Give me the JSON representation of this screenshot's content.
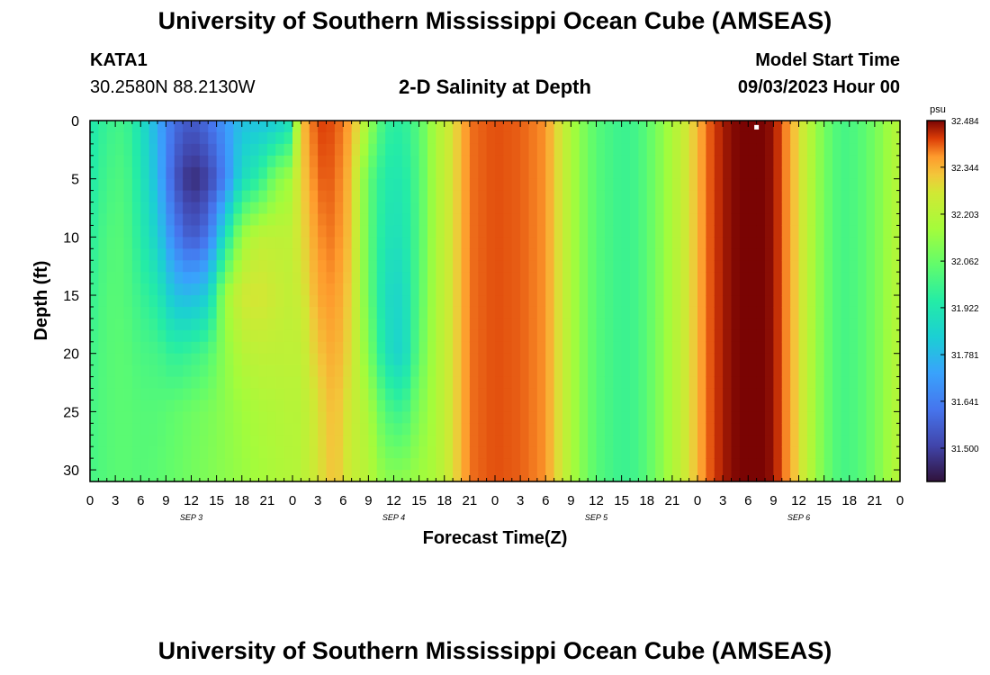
{
  "header": {
    "title": "University of Southern Mississippi Ocean Cube (AMSEAS)",
    "station": "KATA1",
    "coordinates": "30.2580N  88.2130W",
    "plot_title": "2-D Salinity at Depth",
    "model_start_label": "Model Start Time",
    "model_start_value": "09/03/2023 Hour 00"
  },
  "footer": {
    "title": "University of Southern Mississippi Ocean Cube (AMSEAS)"
  },
  "chart_data": {
    "type": "heatmap",
    "title": "2-D Salinity at Depth",
    "xlabel": "Forecast Time(Z)",
    "ylabel": "Depth (ft)",
    "x_tick_labels": [
      "0",
      "3",
      "6",
      "9",
      "12",
      "15",
      "18",
      "21",
      "0",
      "3",
      "6",
      "9",
      "12",
      "15",
      "18",
      "21",
      "0",
      "3",
      "6",
      "9",
      "12",
      "15",
      "18",
      "21",
      "0",
      "3",
      "6",
      "9",
      "12",
      "15",
      "18",
      "21",
      "0"
    ],
    "x_range_hours": [
      0,
      96
    ],
    "date_labels": [
      {
        "label": "SEP 3",
        "hour": 12
      },
      {
        "label": "SEP 4",
        "hour": 36
      },
      {
        "label": "SEP 5",
        "hour": 60
      },
      {
        "label": "SEP 6",
        "hour": 84
      }
    ],
    "y_ticks": [
      0,
      5,
      10,
      15,
      20,
      25,
      30
    ],
    "y_tick_labels": [
      "0",
      "5",
      "10",
      "15",
      "20",
      "25",
      "30"
    ],
    "ylim": [
      0,
      31
    ],
    "y_inverted": true,
    "colorbar": {
      "unit": "psu",
      "min": 31.4,
      "max": 32.484,
      "tick_labels": [
        "32.484",
        "32.344",
        "32.203",
        "32.062",
        "31.922",
        "31.781",
        "31.641",
        "31.500"
      ],
      "tick_values": [
        32.484,
        32.344,
        32.203,
        32.062,
        31.922,
        31.781,
        31.641,
        31.5
      ]
    },
    "marker": {
      "hour": 79,
      "depth": 0.3,
      "color": "#ffffff"
    },
    "columns": [
      {
        "hour": 0,
        "depth": [
          0,
          5,
          10,
          15,
          20,
          25,
          31
        ],
        "salinity": [
          31.92,
          31.93,
          31.95,
          31.97,
          31.99,
          32.0,
          32.0
        ]
      },
      {
        "hour": 2,
        "depth": [
          0,
          5,
          10,
          15,
          20,
          25,
          31
        ],
        "salinity": [
          31.98,
          32.0,
          32.02,
          32.03,
          32.03,
          32.03,
          32.03
        ]
      },
      {
        "hour": 4,
        "depth": [
          0,
          5,
          10,
          15,
          20,
          25,
          31
        ],
        "salinity": [
          32.0,
          32.02,
          32.03,
          32.03,
          32.04,
          32.04,
          32.04
        ]
      },
      {
        "hour": 6,
        "depth": [
          0,
          5,
          10,
          15,
          20,
          25,
          31
        ],
        "salinity": [
          31.9,
          31.92,
          31.94,
          31.98,
          32.01,
          32.03,
          32.03
        ]
      },
      {
        "hour": 8,
        "depth": [
          0,
          5,
          10,
          15,
          20,
          25,
          31
        ],
        "salinity": [
          31.75,
          31.78,
          31.84,
          31.93,
          32.0,
          32.03,
          32.04
        ]
      },
      {
        "hour": 10,
        "depth": [
          0,
          5,
          10,
          15,
          20,
          25,
          31
        ],
        "salinity": [
          31.6,
          31.55,
          31.65,
          31.8,
          31.96,
          32.05,
          32.06
        ]
      },
      {
        "hour": 12,
        "depth": [
          0,
          5,
          10,
          15,
          20,
          25,
          31
        ],
        "salinity": [
          31.55,
          31.45,
          31.55,
          31.78,
          31.98,
          32.07,
          32.08
        ]
      },
      {
        "hour": 14,
        "depth": [
          0,
          5,
          10,
          15,
          20,
          25,
          31
        ],
        "salinity": [
          31.6,
          31.5,
          31.62,
          31.84,
          32.02,
          32.09,
          32.1
        ]
      },
      {
        "hour": 16,
        "depth": [
          0,
          5,
          10,
          15,
          20,
          25,
          31
        ],
        "salinity": [
          31.7,
          31.65,
          31.9,
          32.15,
          32.12,
          32.12,
          32.12
        ]
      },
      {
        "hour": 18,
        "depth": [
          0,
          5,
          10,
          15,
          20,
          25,
          31
        ],
        "salinity": [
          31.8,
          31.88,
          32.15,
          32.26,
          32.2,
          32.15,
          32.14
        ]
      },
      {
        "hour": 20,
        "depth": [
          0,
          5,
          10,
          15,
          20,
          25,
          31
        ],
        "salinity": [
          31.8,
          31.95,
          32.22,
          32.28,
          32.22,
          32.18,
          32.16
        ]
      },
      {
        "hour": 22,
        "depth": [
          0,
          5,
          10,
          15,
          20,
          25,
          31
        ],
        "salinity": [
          31.82,
          32.1,
          32.22,
          32.25,
          32.22,
          32.19,
          32.18
        ]
      },
      {
        "hour": 23.5,
        "depth": [
          0,
          5,
          10,
          15,
          20,
          25,
          31
        ],
        "salinity": [
          31.88,
          32.15,
          32.22,
          32.23,
          32.22,
          32.2,
          32.19
        ]
      },
      {
        "hour": 25,
        "depth": [
          0,
          5,
          10,
          15,
          20,
          25,
          31
        ],
        "salinity": [
          32.32,
          32.3,
          32.28,
          32.25,
          32.22,
          32.2,
          32.2
        ]
      },
      {
        "hour": 27,
        "depth": [
          0,
          5,
          10,
          15,
          20,
          25,
          31
        ],
        "salinity": [
          32.43,
          32.41,
          32.38,
          32.36,
          32.32,
          32.28,
          32.27
        ]
      },
      {
        "hour": 29,
        "depth": [
          0,
          5,
          10,
          15,
          20,
          25,
          31
        ],
        "salinity": [
          32.42,
          32.41,
          32.4,
          32.38,
          32.36,
          32.34,
          32.33
        ]
      },
      {
        "hour": 31,
        "depth": [
          0,
          5,
          10,
          15,
          20,
          25,
          31
        ],
        "salinity": [
          32.36,
          32.33,
          32.32,
          32.3,
          32.28,
          32.25,
          32.24
        ]
      },
      {
        "hour": 33,
        "depth": [
          0,
          5,
          10,
          15,
          20,
          25,
          31
        ],
        "salinity": [
          32.15,
          32.05,
          32.05,
          32.06,
          32.1,
          32.18,
          32.2
        ]
      },
      {
        "hour": 35,
        "depth": [
          0,
          5,
          10,
          15,
          20,
          25,
          31
        ],
        "salinity": [
          31.97,
          31.93,
          31.91,
          31.88,
          31.9,
          32.02,
          32.12
        ]
      },
      {
        "hour": 37,
        "depth": [
          0,
          5,
          10,
          15,
          20,
          25,
          31
        ],
        "salinity": [
          31.95,
          31.92,
          31.9,
          31.86,
          31.84,
          31.98,
          32.12
        ]
      },
      {
        "hour": 39,
        "depth": [
          0,
          5,
          10,
          15,
          20,
          25,
          31
        ],
        "salinity": [
          32.03,
          32.02,
          32.02,
          32.03,
          32.05,
          32.1,
          32.15
        ]
      },
      {
        "hour": 41,
        "depth": [
          0,
          5,
          10,
          15,
          20,
          25,
          31
        ],
        "salinity": [
          32.18,
          32.18,
          32.18,
          32.18,
          32.18,
          32.18,
          32.18
        ]
      },
      {
        "hour": 43,
        "depth": [
          0,
          5,
          10,
          15,
          20,
          25,
          31
        ],
        "salinity": [
          32.28,
          32.28,
          32.28,
          32.28,
          32.28,
          32.28,
          32.28
        ]
      },
      {
        "hour": 45,
        "depth": [
          0,
          5,
          10,
          15,
          20,
          25,
          31
        ],
        "salinity": [
          32.4,
          32.4,
          32.4,
          32.4,
          32.4,
          32.4,
          32.4
        ]
      },
      {
        "hour": 48,
        "depth": [
          0,
          5,
          10,
          15,
          20,
          25,
          31
        ],
        "salinity": [
          32.42,
          32.42,
          32.42,
          32.42,
          32.42,
          32.42,
          32.42
        ]
      },
      {
        "hour": 51,
        "depth": [
          0,
          5,
          10,
          15,
          20,
          25,
          31
        ],
        "salinity": [
          32.41,
          32.41,
          32.41,
          32.41,
          32.41,
          32.41,
          32.41
        ]
      },
      {
        "hour": 54,
        "depth": [
          0,
          5,
          10,
          15,
          20,
          25,
          31
        ],
        "salinity": [
          32.38,
          32.38,
          32.38,
          32.38,
          32.38,
          32.38,
          32.38
        ]
      },
      {
        "hour": 56,
        "depth": [
          0,
          5,
          10,
          15,
          20,
          25,
          31
        ],
        "salinity": [
          32.25,
          32.25,
          32.25,
          32.25,
          32.25,
          32.25,
          32.25
        ]
      },
      {
        "hour": 58,
        "depth": [
          0,
          5,
          10,
          15,
          20,
          25,
          31
        ],
        "salinity": [
          32.12,
          32.12,
          32.12,
          32.12,
          32.12,
          32.12,
          32.12
        ]
      },
      {
        "hour": 60,
        "depth": [
          0,
          5,
          10,
          15,
          20,
          25,
          31
        ],
        "salinity": [
          32.03,
          32.03,
          32.03,
          32.03,
          32.03,
          32.03,
          32.03
        ]
      },
      {
        "hour": 63,
        "depth": [
          0,
          5,
          10,
          15,
          20,
          25,
          31
        ],
        "salinity": [
          31.98,
          31.98,
          31.98,
          31.98,
          31.98,
          31.98,
          31.98
        ]
      },
      {
        "hour": 65,
        "depth": [
          0,
          5,
          10,
          15,
          20,
          25,
          31
        ],
        "salinity": [
          32.0,
          32.0,
          32.0,
          32.0,
          32.0,
          32.0,
          32.0
        ]
      },
      {
        "hour": 67,
        "depth": [
          0,
          5,
          10,
          15,
          20,
          25,
          31
        ],
        "salinity": [
          32.08,
          32.08,
          32.08,
          32.08,
          32.08,
          32.08,
          32.08
        ]
      },
      {
        "hour": 69,
        "depth": [
          0,
          5,
          10,
          15,
          20,
          25,
          31
        ],
        "salinity": [
          32.18,
          32.18,
          32.18,
          32.18,
          32.18,
          32.18,
          32.18
        ]
      },
      {
        "hour": 71,
        "depth": [
          0,
          5,
          10,
          15,
          20,
          25,
          31
        ],
        "salinity": [
          32.28,
          32.28,
          32.28,
          32.28,
          32.28,
          32.28,
          32.28
        ]
      },
      {
        "hour": 73,
        "depth": [
          0,
          5,
          10,
          15,
          20,
          25,
          31
        ],
        "salinity": [
          32.4,
          32.4,
          32.4,
          32.4,
          32.4,
          32.4,
          32.4
        ]
      },
      {
        "hour": 75,
        "depth": [
          0,
          5,
          10,
          15,
          20,
          25,
          31
        ],
        "salinity": [
          32.46,
          32.46,
          32.46,
          32.46,
          32.46,
          32.46,
          32.46
        ]
      },
      {
        "hour": 78,
        "depth": [
          0,
          5,
          10,
          15,
          20,
          25,
          31
        ],
        "salinity": [
          32.5,
          32.5,
          32.5,
          32.5,
          32.5,
          32.5,
          32.5
        ]
      },
      {
        "hour": 81,
        "depth": [
          0,
          5,
          10,
          15,
          20,
          25,
          31
        ],
        "salinity": [
          32.47,
          32.47,
          32.47,
          32.47,
          32.47,
          32.47,
          32.47
        ]
      },
      {
        "hour": 83,
        "depth": [
          0,
          5,
          10,
          15,
          20,
          25,
          31
        ],
        "salinity": [
          32.36,
          32.36,
          32.36,
          32.36,
          32.36,
          32.36,
          32.36
        ]
      },
      {
        "hour": 85,
        "depth": [
          0,
          5,
          10,
          15,
          20,
          25,
          31
        ],
        "salinity": [
          32.22,
          32.22,
          32.22,
          32.22,
          32.22,
          32.22,
          32.22
        ]
      },
      {
        "hour": 87,
        "depth": [
          0,
          5,
          10,
          15,
          20,
          25,
          31
        ],
        "salinity": [
          32.08,
          32.08,
          32.08,
          32.08,
          32.08,
          32.08,
          32.08
        ]
      },
      {
        "hour": 89,
        "depth": [
          0,
          5,
          10,
          15,
          20,
          25,
          31
        ],
        "salinity": [
          32.0,
          32.0,
          32.0,
          32.0,
          32.0,
          32.0,
          32.0
        ]
      },
      {
        "hour": 91,
        "depth": [
          0,
          5,
          10,
          15,
          20,
          25,
          31
        ],
        "salinity": [
          32.02,
          32.02,
          32.02,
          32.02,
          32.02,
          32.02,
          32.02
        ]
      },
      {
        "hour": 93,
        "depth": [
          0,
          5,
          10,
          15,
          20,
          25,
          31
        ],
        "salinity": [
          32.08,
          32.08,
          32.08,
          32.08,
          32.08,
          32.08,
          32.08
        ]
      },
      {
        "hour": 95,
        "depth": [
          0,
          5,
          10,
          15,
          20,
          25,
          31
        ],
        "salinity": [
          32.17,
          32.17,
          32.17,
          32.17,
          32.17,
          32.17,
          32.17
        ]
      },
      {
        "hour": 96,
        "depth": [
          0,
          5,
          10,
          15,
          20,
          25,
          31
        ],
        "salinity": [
          32.2,
          32.2,
          32.2,
          32.2,
          32.2,
          32.2,
          32.2
        ]
      }
    ]
  }
}
